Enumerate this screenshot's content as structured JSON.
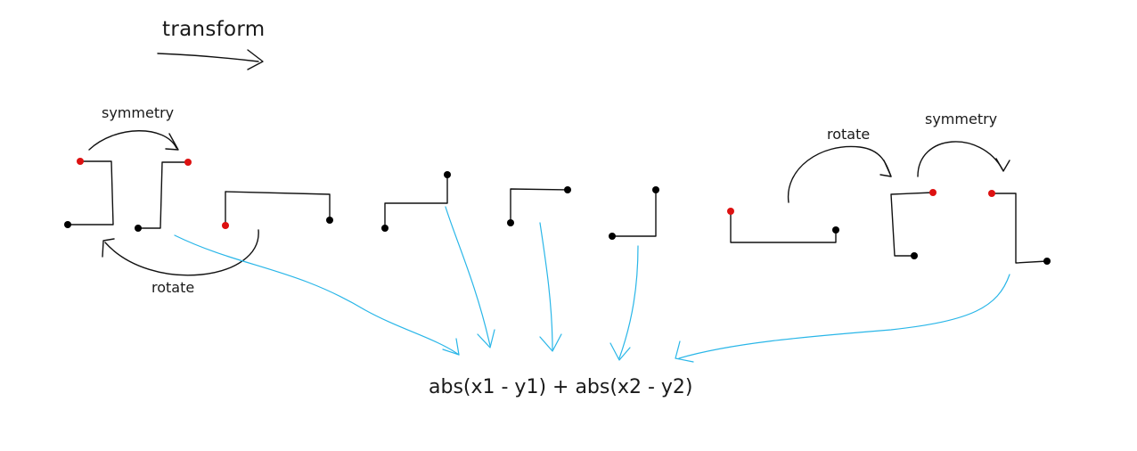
{
  "labels": {
    "title": "transform",
    "symmetry_left": "symmetry",
    "rotate_left": "rotate",
    "rotate_right": "rotate",
    "symmetry_right": "symmetry",
    "formula": "abs(x1 - y1) + abs(x2 - y2)"
  },
  "colors": {
    "line": "#111111",
    "endpoint": "#000000",
    "highlight_endpoint": "#dd1111",
    "mapping_arrow": "#29b6e8"
  }
}
